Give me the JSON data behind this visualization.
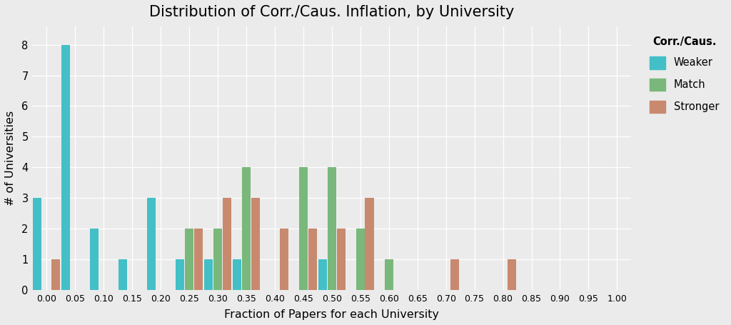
{
  "title": "Distribution of Corr./Caus. Inflation, by University",
  "xlabel": "Fraction of Papers for each University",
  "ylabel": "# of Universities",
  "legend_title": "Corr./Caus.",
  "colors": {
    "Weaker": "#43BFC7",
    "Match": "#79B87A",
    "Stronger": "#C8896E"
  },
  "bins": [
    0.0,
    0.05,
    0.1,
    0.15,
    0.2,
    0.25,
    0.3,
    0.35,
    0.4,
    0.45,
    0.5,
    0.55,
    0.6,
    0.65,
    0.7,
    0.75,
    0.8,
    0.85,
    0.9,
    0.95,
    1.0
  ],
  "weaker": [
    3,
    8,
    2,
    1,
    3,
    1,
    1,
    1,
    0,
    0,
    1,
    0,
    0,
    0,
    0,
    0,
    0,
    0,
    0,
    0,
    0
  ],
  "match": [
    0,
    0,
    0,
    0,
    0,
    2,
    2,
    4,
    0,
    4,
    4,
    2,
    1,
    0,
    0,
    0,
    0,
    0,
    0,
    0,
    0
  ],
  "stronger": [
    1,
    0,
    0,
    0,
    0,
    2,
    3,
    3,
    2,
    2,
    2,
    3,
    0,
    0,
    1,
    0,
    1,
    0,
    0,
    0,
    0
  ],
  "xlim": [
    -0.025,
    1.025
  ],
  "ylim": [
    0,
    8.6
  ],
  "yticks": [
    0,
    1,
    2,
    3,
    4,
    5,
    6,
    7,
    8
  ],
  "xtick_labels": [
    "0.00",
    "0.05",
    "0.10",
    "0.15",
    "0.20",
    "0.25",
    "0.30",
    "0.35",
    "0.40",
    "0.45",
    "0.50",
    "0.55",
    "0.60",
    "0.65",
    "0.70",
    "0.75",
    "0.80",
    "0.85",
    "0.90",
    "0.95",
    "1.00"
  ],
  "bg_color": "#EBEBEB",
  "grid_color": "#FFFFFF",
  "bar_width": 0.016,
  "bin_width": 0.05
}
